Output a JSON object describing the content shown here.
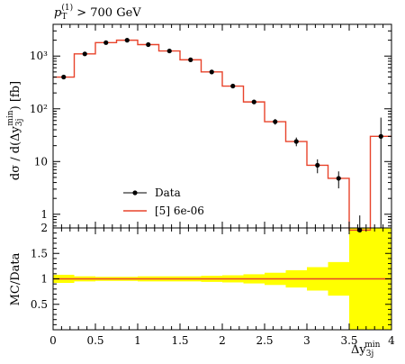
{
  "chart_data": {
    "type": "line",
    "title": "p_T^(1) > 700 GeV",
    "title_parts": {
      "p": "p",
      "sub": "T",
      "sup": "(1)",
      "rest": " > 700 GeV"
    },
    "xlabel": "Δy_3j^min",
    "xlabel_parts": {
      "main": "Δy",
      "sub": "3j",
      "sup": "min"
    },
    "ylabel": "dσ / d(Δy_3j^min) [fb]",
    "ylabel_parts": {
      "pre": "dσ / d(Δy",
      "sub": "3j",
      "sup": "min",
      "post": ") [fb]"
    },
    "ratio_ylabel": "MC/Data",
    "xlim": [
      0,
      4
    ],
    "ylim": [
      0.55,
      4000
    ],
    "yscale": "log",
    "ratio_ylim": [
      0,
      2
    ],
    "x_ticks": [
      0,
      0.5,
      1,
      1.5,
      2,
      2.5,
      3,
      3.5,
      4
    ],
    "x_tick_labels": [
      "0",
      "0.5",
      "1",
      "1.5",
      "2",
      "2.5",
      "3",
      "3.5",
      "4"
    ],
    "y_ticks": [
      1,
      10,
      100,
      1000
    ],
    "y_tick_labels": [
      "1",
      "10",
      "10²",
      "10³"
    ],
    "ratio_ticks": [
      0.5,
      1,
      1.5,
      2
    ],
    "ratio_tick_labels": [
      "0.5",
      "1",
      "1.5",
      "2"
    ],
    "legend": {
      "placement": "lower-left",
      "entries": [
        {
          "label": "Data",
          "kind": "data"
        },
        {
          "label": "[5] 6e-06",
          "kind": "mc"
        }
      ]
    },
    "colors": {
      "mc": "#e8432b",
      "data": "#000000",
      "band": "#ffff00"
    },
    "bins": [
      {
        "x_low": 0.0,
        "x_high": 0.25,
        "data": 400,
        "err": 20,
        "mc": 400
      },
      {
        "x_low": 0.25,
        "x_high": 0.5,
        "data": 1100,
        "err": 50,
        "mc": 1100
      },
      {
        "x_low": 0.5,
        "x_high": 0.75,
        "data": 1800,
        "err": 80,
        "mc": 1800
      },
      {
        "x_low": 0.75,
        "x_high": 1.0,
        "data": 2000,
        "err": 90,
        "mc": 2000
      },
      {
        "x_low": 1.0,
        "x_high": 1.25,
        "data": 1650,
        "err": 75,
        "mc": 1650
      },
      {
        "x_low": 1.25,
        "x_high": 1.5,
        "data": 1250,
        "err": 60,
        "mc": 1250
      },
      {
        "x_low": 1.5,
        "x_high": 1.75,
        "data": 850,
        "err": 45,
        "mc": 850
      },
      {
        "x_low": 1.75,
        "x_high": 2.0,
        "data": 500,
        "err": 30,
        "mc": 500
      },
      {
        "x_low": 2.0,
        "x_high": 2.25,
        "data": 270,
        "err": 18,
        "mc": 270
      },
      {
        "x_low": 2.25,
        "x_high": 2.5,
        "data": 135,
        "err": 12,
        "mc": 135
      },
      {
        "x_low": 2.5,
        "x_high": 2.75,
        "data": 57,
        "err": 7,
        "mc": 57
      },
      {
        "x_low": 2.75,
        "x_high": 3.0,
        "data": 24,
        "err": 4.5,
        "mc": 24
      },
      {
        "x_low": 3.0,
        "x_high": 3.25,
        "data": 8.5,
        "err": 2.5,
        "mc": 8.5
      },
      {
        "x_low": 3.25,
        "x_high": 3.5,
        "data": 4.8,
        "err": 1.7,
        "mc": 4.8
      },
      {
        "x_low": 3.5,
        "x_high": 3.75,
        "data": 0.5,
        "err": 0.45,
        "mc": 0.5
      },
      {
        "x_low": 3.75,
        "x_high": 4.0,
        "data": 30,
        "err": 38,
        "mc": 30
      }
    ],
    "ratio": [
      {
        "x_low": 0.0,
        "x_high": 0.25,
        "value": 1.0,
        "band_low": 0.92,
        "band_high": 1.08
      },
      {
        "x_low": 0.25,
        "x_high": 0.5,
        "value": 1.0,
        "band_low": 0.95,
        "band_high": 1.05
      },
      {
        "x_low": 0.5,
        "x_high": 0.75,
        "value": 1.0,
        "band_low": 0.96,
        "band_high": 1.04
      },
      {
        "x_low": 0.75,
        "x_high": 1.0,
        "value": 1.0,
        "band_low": 0.96,
        "band_high": 1.04
      },
      {
        "x_low": 1.0,
        "x_high": 1.25,
        "value": 1.0,
        "band_low": 0.95,
        "band_high": 1.05
      },
      {
        "x_low": 1.25,
        "x_high": 1.5,
        "value": 1.0,
        "band_low": 0.95,
        "band_high": 1.05
      },
      {
        "x_low": 1.5,
        "x_high": 1.75,
        "value": 1.0,
        "band_low": 0.95,
        "band_high": 1.05
      },
      {
        "x_low": 1.75,
        "x_high": 2.0,
        "value": 1.0,
        "band_low": 0.94,
        "band_high": 1.06
      },
      {
        "x_low": 2.0,
        "x_high": 2.25,
        "value": 1.0,
        "band_low": 0.93,
        "band_high": 1.07
      },
      {
        "x_low": 2.25,
        "x_high": 2.5,
        "value": 1.0,
        "band_low": 0.91,
        "band_high": 1.09
      },
      {
        "x_low": 2.5,
        "x_high": 2.75,
        "value": 1.0,
        "band_low": 0.88,
        "band_high": 1.12
      },
      {
        "x_low": 2.75,
        "x_high": 3.0,
        "value": 1.0,
        "band_low": 0.83,
        "band_high": 1.17
      },
      {
        "x_low": 3.0,
        "x_high": 3.25,
        "value": 1.0,
        "band_low": 0.77,
        "band_high": 1.23
      },
      {
        "x_low": 3.25,
        "x_high": 3.5,
        "value": 1.0,
        "band_low": 0.67,
        "band_high": 1.33
      },
      {
        "x_low": 3.5,
        "x_high": 3.75,
        "value": 1.0,
        "band_low": 0.0,
        "band_high": 2.0
      },
      {
        "x_low": 3.75,
        "x_high": 4.0,
        "value": 1.0,
        "band_low": 0.0,
        "band_high": 2.0
      }
    ]
  }
}
